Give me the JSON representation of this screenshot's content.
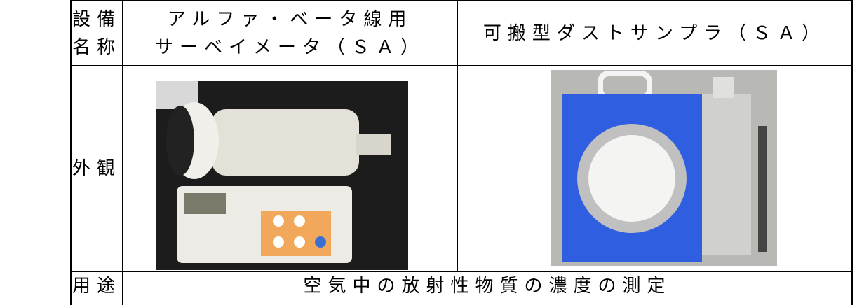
{
  "table": {
    "rows": [
      [
        [
          "設備",
          "名称"
        ],
        [
          "アルファ・ベータ線用",
          "サーベイメータ（ＳＡ）"
        ],
        [
          "可搬型ダストサンプラ（ＳＡ）"
        ]
      ],
      [
        [
          "外観"
        ]
      ],
      [
        [
          "用途"
        ],
        [
          "空気中の放射性物質の濃度の測定"
        ]
      ]
    ]
  }
}
